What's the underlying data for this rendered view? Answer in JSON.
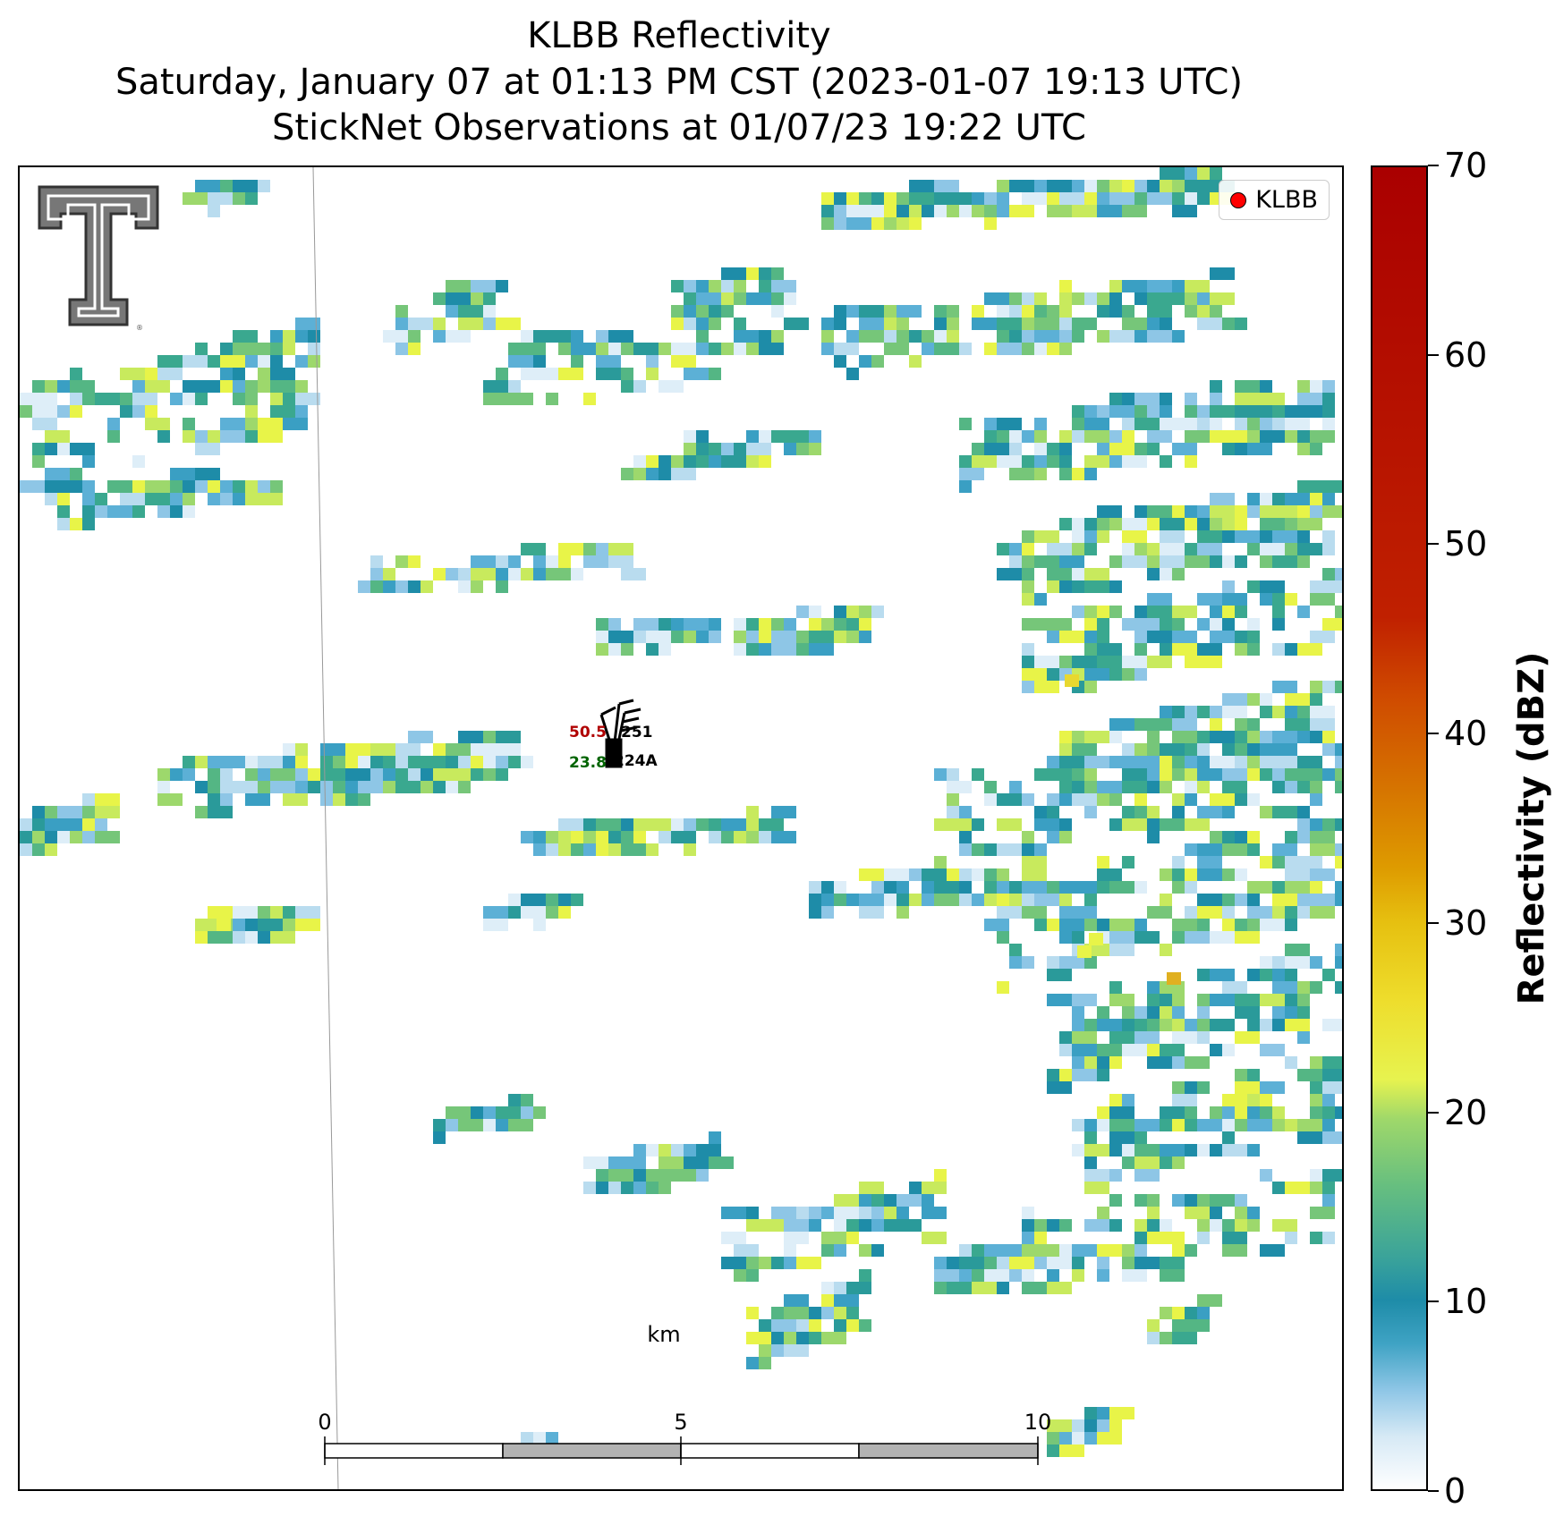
{
  "title": {
    "line1": "KLBB Reflectivity",
    "line2": "Saturday, January 07 at 01:13 PM CST (2023-01-07 19:13 UTC)",
    "line3": "StickNet Observations at 01/07/23 19:22 UTC"
  },
  "legend": {
    "label": "KLBB",
    "marker_color": "#ff0000"
  },
  "colorbar": {
    "title": "Reflectivity (dBZ)",
    "ticks": [
      "0",
      "10",
      "20",
      "30",
      "40",
      "50",
      "60",
      "70"
    ],
    "range": [
      0,
      70
    ]
  },
  "scalebar": {
    "labels": [
      "0",
      "5",
      "10"
    ],
    "unit": "km"
  },
  "stations": [
    {
      "id": "251",
      "temperature": "50.5",
      "temp_color": "#b00000"
    },
    {
      "id": "224A",
      "dewpoint": "23.8",
      "dew_color": "#006400"
    }
  ],
  "logo": {
    "icon": "texas-tech-double-t-icon"
  }
}
